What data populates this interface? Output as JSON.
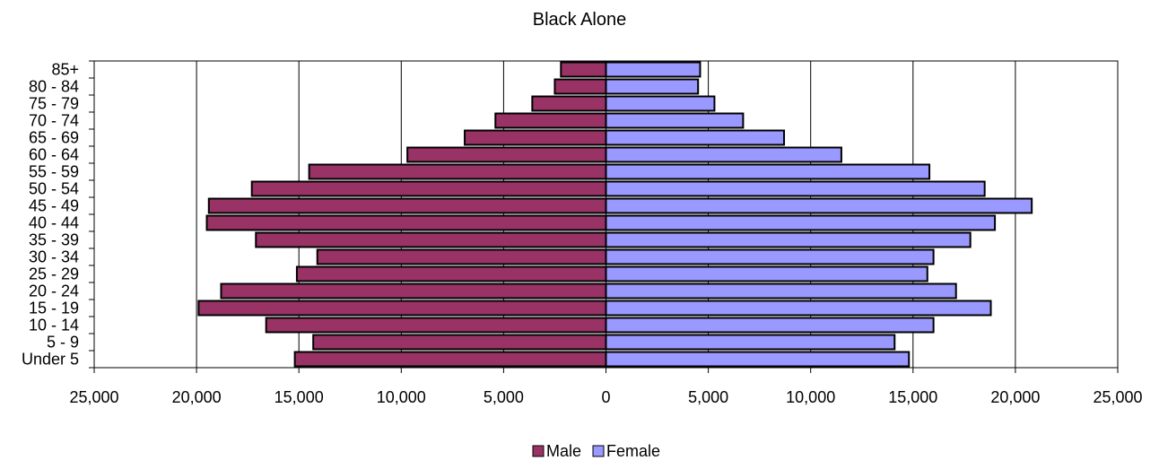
{
  "chart_data": {
    "type": "bar",
    "orientation": "horizontal",
    "title": "Black Alone",
    "categories": [
      "Under 5",
      "5 - 9",
      "10 - 14",
      "15 - 19",
      "20 - 24",
      "25 - 29",
      "30 - 34",
      "35 - 39",
      "40 - 44",
      "45 - 49",
      "50 - 54",
      "55 - 59",
      "60 - 64",
      "65 - 69",
      "70 - 74",
      "75 - 79",
      "80 - 84",
      "85+"
    ],
    "series": [
      {
        "name": "Male",
        "color": "#993366",
        "values": [
          15200,
          14300,
          16600,
          19900,
          18800,
          15100,
          14100,
          17100,
          19500,
          19400,
          17300,
          14500,
          9700,
          6900,
          5400,
          3600,
          2500,
          2200
        ]
      },
      {
        "name": "Female",
        "color": "#9999FF",
        "values": [
          14800,
          14100,
          16000,
          18800,
          17100,
          15700,
          16000,
          17800,
          19000,
          20800,
          18500,
          15800,
          11500,
          8700,
          6700,
          5300,
          4500,
          4600
        ]
      }
    ],
    "xlim": [
      -25000,
      25000
    ],
    "x_tick_values": [
      -25000,
      -20000,
      -15000,
      -10000,
      -5000,
      0,
      5000,
      10000,
      15000,
      20000,
      25000
    ],
    "x_tick_labels": [
      "25,000",
      "20,000",
      "15,000",
      "10,000",
      "5,000",
      "0",
      "5,000",
      "10,000",
      "15,000",
      "20,000",
      "25,000"
    ],
    "grid": true,
    "legend_position": "bottom-center"
  }
}
